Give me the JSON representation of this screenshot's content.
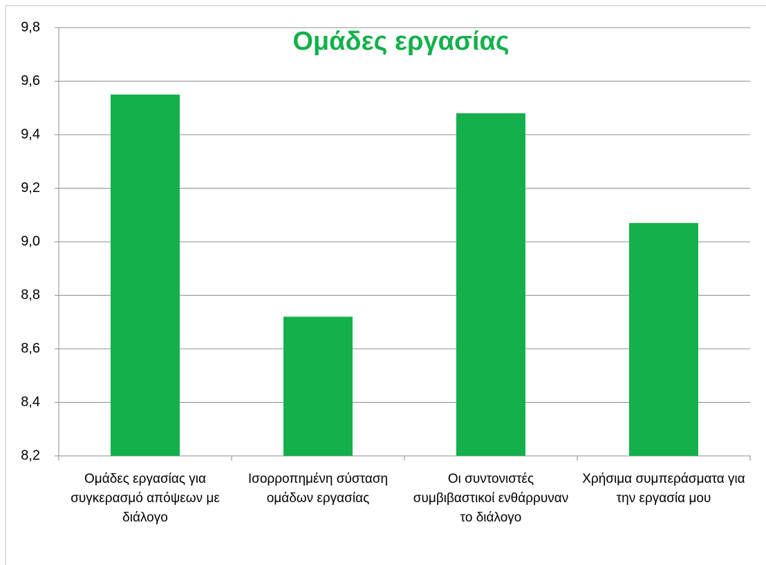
{
  "chart_data": {
    "type": "bar",
    "title": "Ομάδες εργασίας",
    "categories": [
      "Ομάδες εργασίας για συγκερασμό απόψεων με διάλογο",
      "Ισορροπημένη σύσταση ομάδων εργασίας",
      "Οι συντονιστές συμβιβαστικοί ενθάρρυναν το διάλογο",
      "Χρήσιμα συμπεράσματα για την εργασία μου"
    ],
    "values": [
      9.55,
      8.72,
      9.48,
      9.07
    ],
    "color": "#14b04c",
    "ylim": [
      8.2,
      9.8
    ],
    "yticks": [
      {
        "value": 8.2,
        "label": "8,2"
      },
      {
        "value": 8.4,
        "label": "8,4"
      },
      {
        "value": 8.6,
        "label": "8,6"
      },
      {
        "value": 8.8,
        "label": "8,8"
      },
      {
        "value": 9.0,
        "label": "9,0"
      },
      {
        "value": 9.2,
        "label": "9,2"
      },
      {
        "value": 9.4,
        "label": "9,4"
      },
      {
        "value": 9.6,
        "label": "9,6"
      },
      {
        "value": 9.8,
        "label": "9,8"
      }
    ],
    "grid": true
  }
}
